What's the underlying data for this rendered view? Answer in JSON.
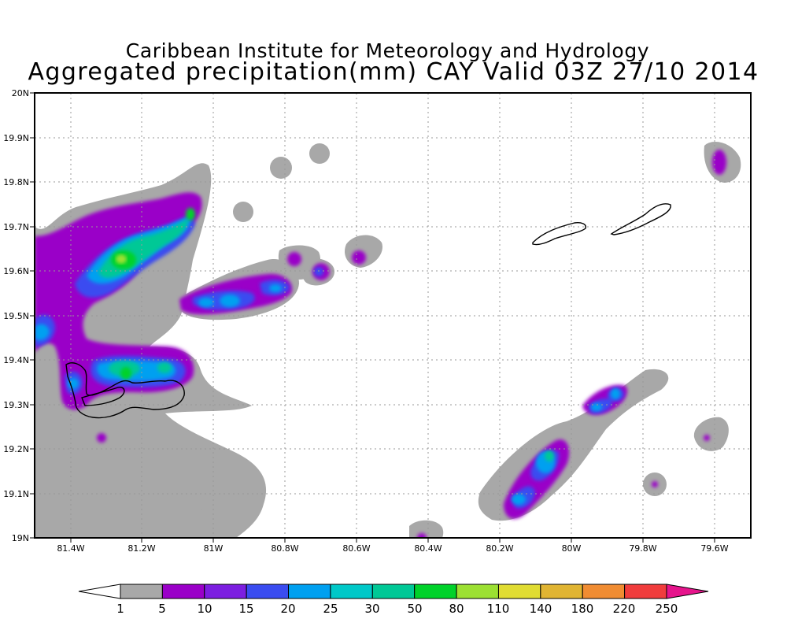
{
  "title": {
    "line1": "Caribbean Institute for Meteorology and Hydrology",
    "line2": "Aggregated precipitation(mm) CAY Valid 03Z 27/10 2014"
  },
  "axes": {
    "lon_ticks": [
      "81.4W",
      "81.2W",
      "81W",
      "80.8W",
      "80.6W",
      "80.4W",
      "80.2W",
      "80W",
      "79.8W",
      "79.6W"
    ],
    "lat_ticks": [
      "19N",
      "19.1N",
      "19.2N",
      "19.3N",
      "19.4N",
      "19.5N",
      "19.6N",
      "19.7N",
      "19.8N",
      "19.9N",
      "20N"
    ]
  },
  "colorbar": {
    "labels": [
      "1",
      "5",
      "10",
      "15",
      "20",
      "25",
      "30",
      "50",
      "80",
      "110",
      "140",
      "180",
      "220",
      "250"
    ],
    "colors": [
      "#a8a8a8",
      "#9a00c8",
      "#7c1ee0",
      "#3a4cf0",
      "#00a0f0",
      "#00c8c8",
      "#00c896",
      "#00d22a",
      "#9ce032",
      "#e0dc32",
      "#e0b432",
      "#f08c32",
      "#f03c3c"
    ],
    "low_color": "#ffffff",
    "high_color": "#e6148c"
  },
  "chart_data": {
    "type": "heatmap",
    "title": "Aggregated precipitation(mm) CAY Valid 03Z 27/10 2014",
    "xlim": [
      -81.5,
      -79.5
    ],
    "ylim": [
      19.0,
      20.0
    ],
    "units": "mm",
    "levels": [
      1,
      5,
      10,
      15,
      20,
      25,
      30,
      50,
      80,
      110,
      140,
      180,
      220,
      250
    ],
    "cells": [
      {
        "lon": -81.25,
        "lat": 19.62,
        "value": 110
      },
      {
        "lon": -81.28,
        "lat": 19.62,
        "value": 80
      },
      {
        "lon": -81.08,
        "lat": 19.72,
        "value": 80
      },
      {
        "lon": -81.25,
        "lat": 19.37,
        "value": 80
      },
      {
        "lon": -81.45,
        "lat": 19.48,
        "value": 20
      },
      {
        "lon": -81.39,
        "lat": 19.34,
        "value": 20
      },
      {
        "lon": -81.12,
        "lat": 19.38,
        "value": 25
      },
      {
        "lon": -80.97,
        "lat": 19.53,
        "value": 20
      },
      {
        "lon": -80.92,
        "lat": 19.53,
        "value": 20
      },
      {
        "lon": -80.81,
        "lat": 19.56,
        "value": 15
      },
      {
        "lon": -80.7,
        "lat": 19.59,
        "value": 15
      },
      {
        "lon": -80.79,
        "lat": 19.63,
        "value": 5
      },
      {
        "lon": -80.59,
        "lat": 19.63,
        "value": 5
      },
      {
        "lon": -80.14,
        "lat": 19.08,
        "value": 20
      },
      {
        "lon": -80.05,
        "lat": 19.18,
        "value": 20
      },
      {
        "lon": -79.94,
        "lat": 19.29,
        "value": 15
      },
      {
        "lon": -79.88,
        "lat": 19.33,
        "value": 15
      },
      {
        "lon": -79.59,
        "lat": 19.85,
        "value": 5
      },
      {
        "lon": -79.63,
        "lat": 19.22,
        "value": 5
      },
      {
        "lon": -79.76,
        "lat": 19.12,
        "value": 5
      },
      {
        "lon": -81.3,
        "lat": 19.23,
        "value": 5
      },
      {
        "lon": -81.4,
        "lat": 19.63,
        "value": 5
      },
      {
        "lon": -80.4,
        "lat": 19.0,
        "value": 5
      }
    ]
  }
}
